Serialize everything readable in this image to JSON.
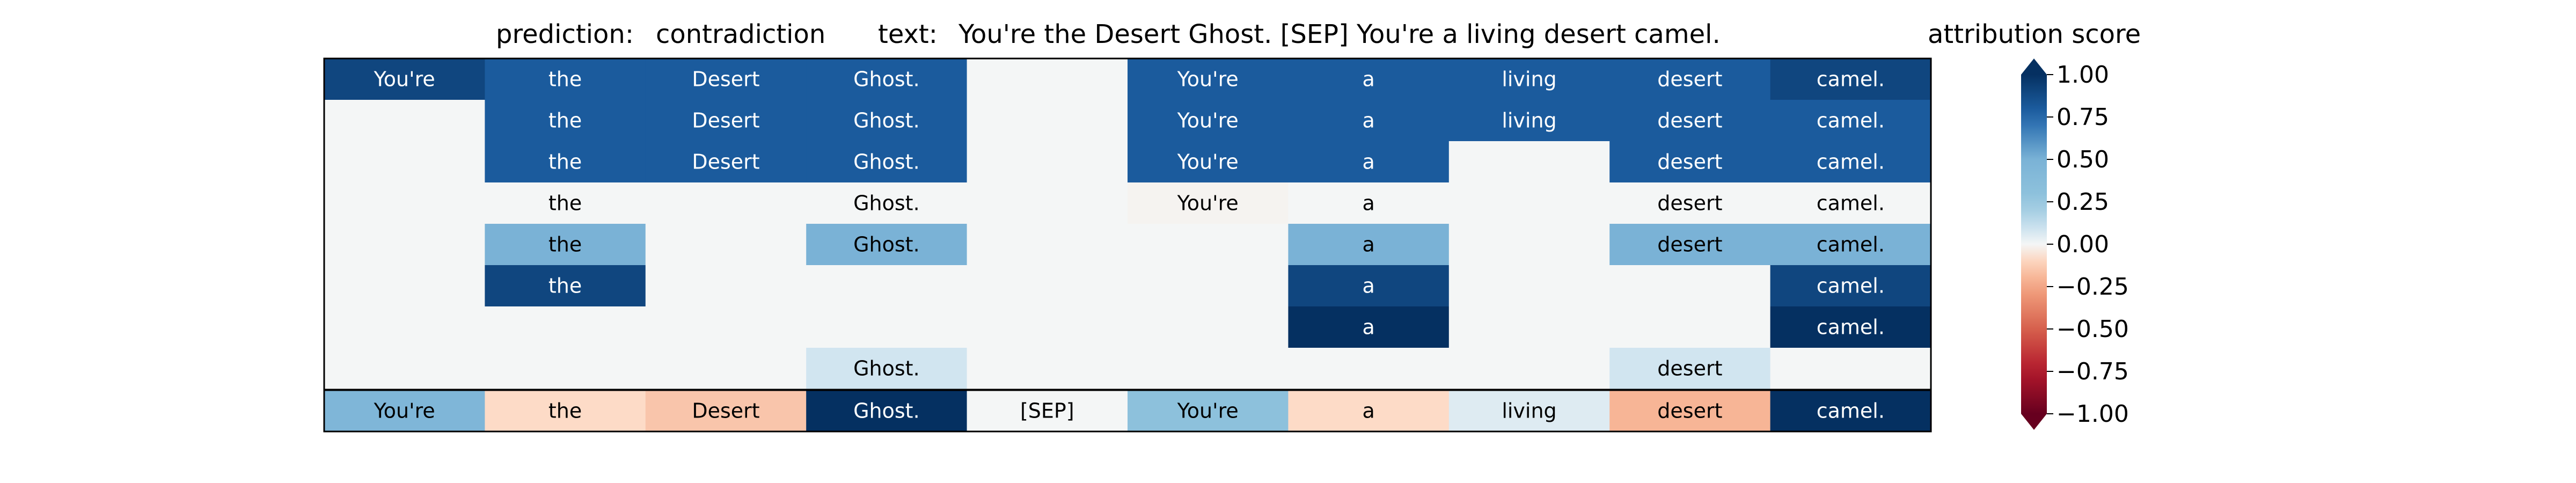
{
  "header": {
    "prediction_label": "prediction:",
    "prediction_value": "contradiction",
    "text_label": "text:",
    "text_value": "You're the Desert Ghost. [SEP] You're a living desert camel.",
    "colorbar_title": "attribution score"
  },
  "colorbar": {
    "min": -1.0,
    "max": 1.0,
    "ticks": [
      {
        "value": 1.0,
        "label": "1.00"
      },
      {
        "value": 0.75,
        "label": "0.75"
      },
      {
        "value": 0.5,
        "label": "0.50"
      },
      {
        "value": 0.25,
        "label": "0.25"
      },
      {
        "value": 0.0,
        "label": "0.00"
      },
      {
        "value": -0.25,
        "label": "−0.25"
      },
      {
        "value": -0.5,
        "label": "−0.50"
      },
      {
        "value": -0.75,
        "label": "−0.75"
      },
      {
        "value": -1.0,
        "label": "−1.00"
      }
    ],
    "colormap": "RdBu",
    "extend": "both"
  },
  "chart_data": {
    "type": "heatmap",
    "tokens": [
      "You're",
      "the",
      "Desert",
      "Ghost.",
      "[SEP]",
      "You're",
      "a",
      "living",
      "desert",
      "camel."
    ],
    "rows": [
      {
        "labels": [
          "You're",
          "the",
          "Desert",
          "Ghost.",
          "",
          "You're",
          "a",
          "living",
          "desert",
          "camel."
        ],
        "values": [
          0.9,
          0.8,
          0.8,
          0.8,
          0.0,
          0.8,
          0.8,
          0.8,
          0.8,
          0.9
        ]
      },
      {
        "labels": [
          "",
          "the",
          "Desert",
          "Ghost.",
          "",
          "You're",
          "a",
          "living",
          "desert",
          "camel."
        ],
        "values": [
          0.0,
          0.8,
          0.8,
          0.8,
          0.0,
          0.8,
          0.8,
          0.8,
          0.8,
          0.8
        ]
      },
      {
        "labels": [
          "",
          "the",
          "Desert",
          "Ghost.",
          "",
          "You're",
          "a",
          "",
          "desert",
          "camel."
        ],
        "values": [
          0.0,
          0.8,
          0.8,
          0.8,
          0.0,
          0.8,
          0.8,
          0.0,
          0.8,
          0.8
        ]
      },
      {
        "labels": [
          "",
          "the",
          "",
          "Ghost.",
          "",
          "You're",
          "a",
          "",
          "desert",
          "camel."
        ],
        "values": [
          0.0,
          0.0,
          0.0,
          0.0,
          0.0,
          -0.01,
          0.0,
          0.0,
          0.0,
          0.0
        ]
      },
      {
        "labels": [
          "",
          "the",
          "",
          "Ghost.",
          "",
          "",
          "a",
          "",
          "desert",
          "camel."
        ],
        "values": [
          0.0,
          0.5,
          0.0,
          0.5,
          0.0,
          0.0,
          0.5,
          0.0,
          0.5,
          0.5
        ]
      },
      {
        "labels": [
          "",
          "the",
          "",
          "",
          "",
          "",
          "a",
          "",
          "",
          "camel."
        ],
        "values": [
          0.0,
          0.9,
          0.0,
          0.0,
          0.0,
          0.0,
          0.9,
          0.0,
          0.0,
          0.9
        ]
      },
      {
        "labels": [
          "",
          "",
          "",
          "",
          "",
          "",
          "a",
          "",
          "",
          "camel."
        ],
        "values": [
          0.0,
          0.0,
          0.0,
          0.0,
          0.0,
          0.0,
          1.0,
          0.0,
          0.0,
          1.0
        ]
      },
      {
        "labels": [
          "",
          "",
          "",
          "Ghost.",
          "",
          "",
          "",
          "",
          "desert",
          ""
        ],
        "values": [
          0.0,
          0.0,
          0.0,
          0.08,
          0.0,
          0.0,
          0.0,
          0.0,
          0.08,
          0.0
        ]
      }
    ],
    "summary_row": {
      "labels": [
        "You're",
        "the",
        "Desert",
        "Ghost.",
        "[SEP]",
        "You're",
        "a",
        "living",
        "desert",
        "camel."
      ],
      "values": [
        0.45,
        -0.08,
        -0.15,
        1.0,
        0.0,
        0.3,
        -0.08,
        0.05,
        -0.2,
        1.0
      ]
    }
  }
}
